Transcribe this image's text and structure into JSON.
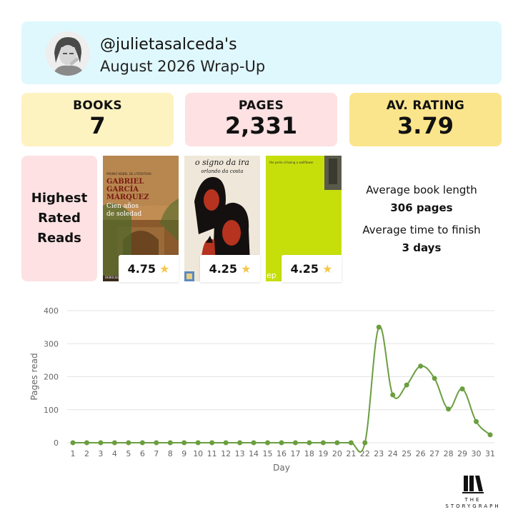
{
  "header": {
    "handle": "@julietasalceda's",
    "subtitle": "August 2026 Wrap-Up"
  },
  "stats": [
    {
      "label": "BOOKS",
      "value": "7"
    },
    {
      "label": "PAGES",
      "value": "2,331"
    },
    {
      "label": "AV. RATING",
      "value": "3.79"
    }
  ],
  "highest_rated": {
    "title_lines": [
      "Highest",
      "Rated",
      "Reads"
    ],
    "books": [
      {
        "rating": "4.75",
        "cover_lines": [
          "PREMIO NOBEL DE LITERATURA",
          "GABRIEL",
          "GARCÍA",
          "MÁRQUEZ",
          "Cien años",
          "de soledad",
          "DEBOLSILLO"
        ]
      },
      {
        "rating": "4.25",
        "cover_lines": [
          "o signo da ira",
          "orlando da costa"
        ]
      },
      {
        "rating": "4.25",
        "cover_lines": [
          "the perks of being a wallflower",
          "ep"
        ]
      }
    ]
  },
  "averages": {
    "book_length_label": "Average book length",
    "book_length_value": "306 pages",
    "finish_label": "Average time to finish",
    "finish_value": "3 days"
  },
  "chart_data": {
    "type": "line",
    "xlabel": "Day",
    "ylabel": "Pages read",
    "ylim": [
      0,
      400
    ],
    "yticks": [
      0,
      100,
      200,
      300,
      400
    ],
    "x": [
      1,
      2,
      3,
      4,
      5,
      6,
      7,
      8,
      9,
      10,
      11,
      12,
      13,
      14,
      15,
      16,
      17,
      18,
      19,
      20,
      21,
      22,
      23,
      24,
      25,
      26,
      27,
      28,
      29,
      30,
      31
    ],
    "series": [
      {
        "values": [
          0,
          0,
          0,
          0,
          0,
          0,
          0,
          0,
          0,
          0,
          0,
          0,
          0,
          0,
          0,
          0,
          0,
          0,
          0,
          0,
          0,
          0,
          350,
          145,
          175,
          232,
          195,
          102,
          163,
          64,
          24
        ]
      }
    ],
    "grid": true,
    "color": "#6a9e3f"
  },
  "logo": {
    "line1": "THE",
    "line2": "STORYGRAPH"
  },
  "colors": {
    "accent_green": "#6a9e3f",
    "header_bg": "#dff8fd"
  }
}
